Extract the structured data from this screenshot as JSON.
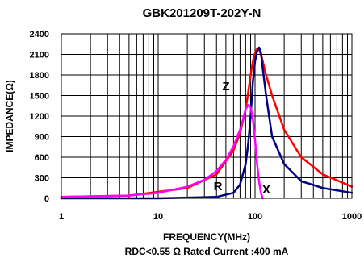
{
  "chart_data": {
    "type": "line",
    "title": "GBK201209T-202Y-N",
    "xlabel": "FREQUENCY(MHz)",
    "ylabel": "IMPEDANCE(Ω)",
    "note": "RDC<0.55 Ω Rated Current :400 mA",
    "x_scale": "log",
    "xlim": [
      1,
      1000
    ],
    "ylim": [
      0,
      2400
    ],
    "x_ticks": [
      1,
      10,
      100,
      1000
    ],
    "x_tick_labels": [
      "1",
      "10",
      "100",
      "1000"
    ],
    "y_ticks": [
      0,
      300,
      600,
      900,
      1200,
      1500,
      1800,
      2100,
      2400
    ],
    "y_tick_labels": [
      "0",
      "300",
      "600",
      "900",
      "1200",
      "1500",
      "1800",
      "2100",
      "2400"
    ],
    "grid": true,
    "series": [
      {
        "name": "Z",
        "color": "#ff0000",
        "x": [
          1,
          5,
          20,
          40,
          60,
          70,
          80,
          85,
          90,
          95,
          100,
          105,
          110,
          115,
          120,
          130,
          150,
          200,
          300,
          500,
          1000
        ],
        "y": [
          20,
          40,
          150,
          350,
          700,
          950,
          1300,
          1550,
          1800,
          2000,
          2120,
          2180,
          2170,
          2100,
          2000,
          1800,
          1500,
          1000,
          600,
          350,
          170
        ]
      },
      {
        "name": "R",
        "color": "#000080",
        "x": [
          1,
          10,
          40,
          60,
          70,
          80,
          85,
          90,
          95,
          100,
          105,
          110,
          115,
          120,
          130,
          150,
          200,
          300,
          500,
          1000
        ],
        "y": [
          0,
          0,
          20,
          80,
          200,
          500,
          800,
          1200,
          1700,
          2000,
          2150,
          2200,
          2130,
          1900,
          1500,
          900,
          500,
          250,
          150,
          80
        ]
      },
      {
        "name": "X",
        "color": "#ff00ff",
        "x": [
          1,
          5,
          10,
          20,
          30,
          40,
          50,
          60,
          70,
          75,
          80,
          85,
          90,
          95,
          100,
          105,
          110,
          115,
          120
        ],
        "y": [
          20,
          40,
          80,
          170,
          270,
          400,
          560,
          760,
          1000,
          1150,
          1300,
          1360,
          1330,
          1150,
          850,
          500,
          250,
          80,
          0
        ]
      }
    ]
  }
}
